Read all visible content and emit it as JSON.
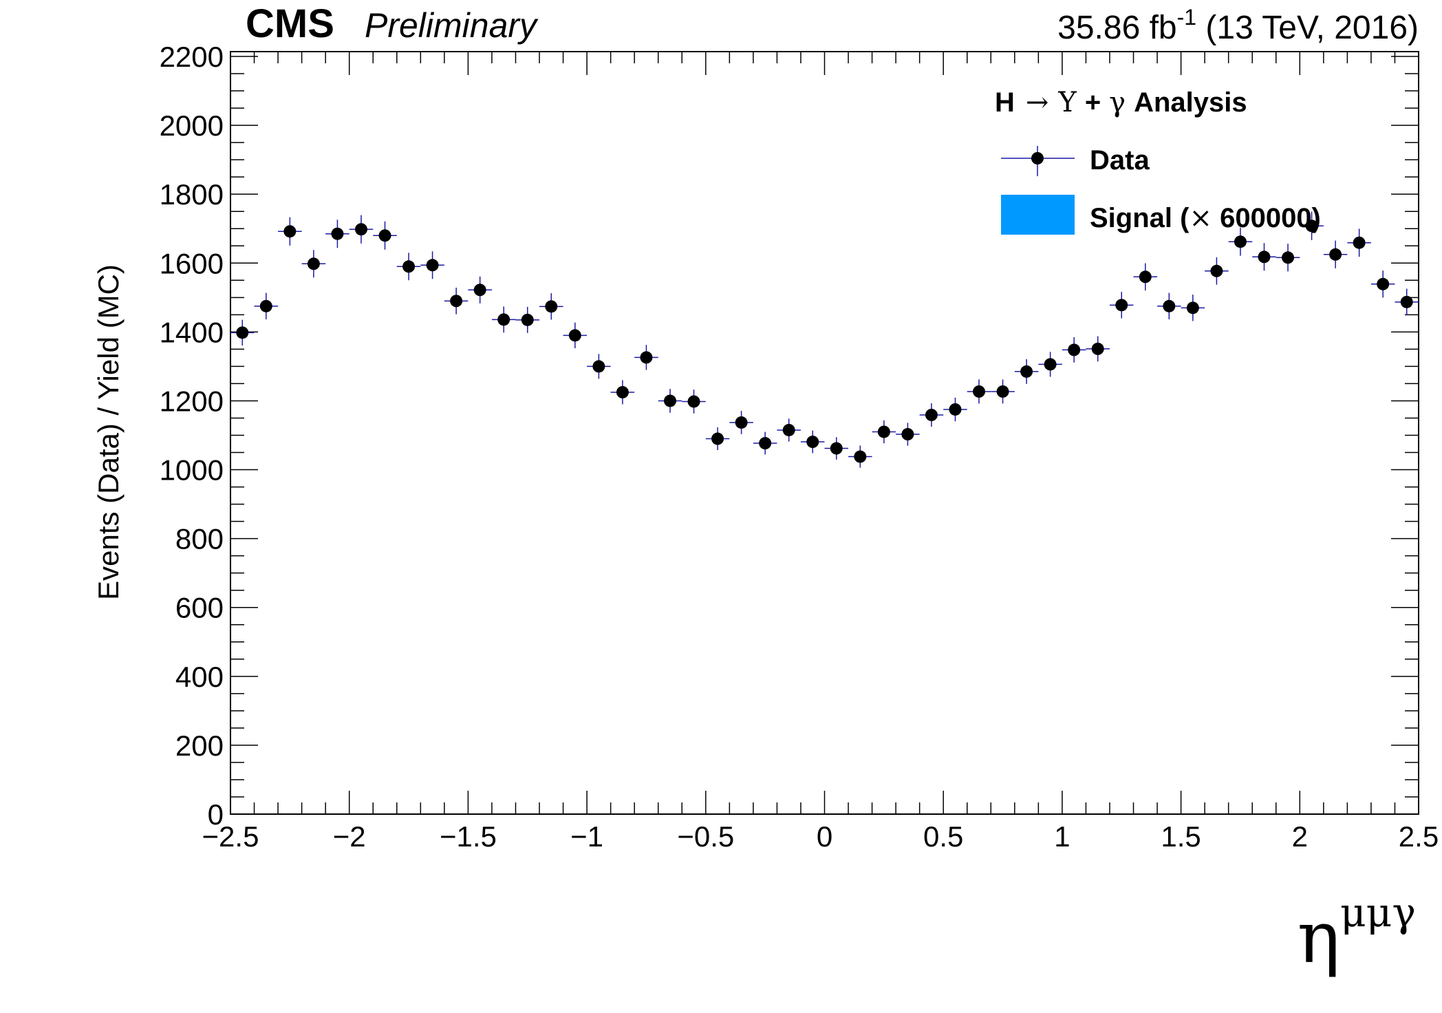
{
  "header": {
    "experiment": "CMS",
    "status": "Preliminary",
    "lumi_value": "35.86 fb",
    "lumi_exp": "-1",
    "lumi_tail": " (13 TeV, 2016)"
  },
  "legend": {
    "title_h": "H",
    "title_arrow": "→",
    "title_upsilon": "Υ",
    "title_plus": "+",
    "title_gamma": "γ",
    "title_rest": "Analysis",
    "data_label": "Data",
    "signal_label_pre": "Signal (",
    "signal_label_times": "×",
    "signal_label_post": " 600000)"
  },
  "colors": {
    "signal_fill": "#0099ff",
    "errorbar": "#1a1aa6",
    "marker": "#000000"
  },
  "chart_data": {
    "type": "scatter",
    "ylabel": "Events (Data) / Yield (MC)",
    "xlabel_base": "η",
    "xlabel_sup": "μμγ",
    "xlim": [
      -2.5,
      2.5
    ],
    "ylim": [
      0,
      2200
    ],
    "x_ticks": [
      -2.5,
      -2,
      -1.5,
      -1,
      -0.5,
      0,
      0.5,
      1,
      1.5,
      2,
      2.5
    ],
    "x_tick_labels": [
      "−2.5",
      "−2",
      "−1.5",
      "−1",
      "−0.5",
      "0",
      "0.5",
      "1",
      "1.5",
      "2",
      "2.5"
    ],
    "y_ticks": [
      0,
      200,
      400,
      600,
      800,
      1000,
      1200,
      1400,
      1600,
      1800,
      2000,
      2200
    ],
    "y_tick_labels": [
      "0",
      "200",
      "400",
      "600",
      "800",
      "1000",
      "1200",
      "1400",
      "1600",
      "1800",
      "2000",
      "2200"
    ],
    "legend_position": "top-right",
    "series": [
      {
        "name": "Data",
        "bin_half_width": 0.05,
        "x": [
          -2.45,
          -2.35,
          -2.25,
          -2.15,
          -2.05,
          -1.95,
          -1.85,
          -1.75,
          -1.65,
          -1.55,
          -1.45,
          -1.35,
          -1.25,
          -1.15,
          -1.05,
          -0.95,
          -0.85,
          -0.75,
          -0.65,
          -0.55,
          -0.45,
          -0.35,
          -0.25,
          -0.15,
          -0.05,
          0.05,
          0.15,
          0.25,
          0.35,
          0.45,
          0.55,
          0.65,
          0.75,
          0.85,
          0.95,
          1.05,
          1.15,
          1.25,
          1.35,
          1.45,
          1.55,
          1.65,
          1.75,
          1.85,
          1.95,
          2.05,
          2.15,
          2.25,
          2.35,
          2.45
        ],
        "y": [
          1398,
          1475,
          1692,
          1598,
          1685,
          1698,
          1680,
          1590,
          1594,
          1490,
          1522,
          1436,
          1435,
          1474,
          1390,
          1300,
          1225,
          1326,
          1200,
          1198,
          1090,
          1137,
          1077,
          1115,
          1081,
          1062,
          1038,
          1110,
          1103,
          1159,
          1175,
          1227,
          1227,
          1285,
          1306,
          1348,
          1351,
          1478,
          1560,
          1475,
          1470,
          1577,
          1662,
          1618,
          1616,
          1708,
          1625,
          1659,
          1539,
          1487
        ]
      },
      {
        "name": "Signal (× 600000)",
        "type": "histogram",
        "values": []
      }
    ]
  }
}
